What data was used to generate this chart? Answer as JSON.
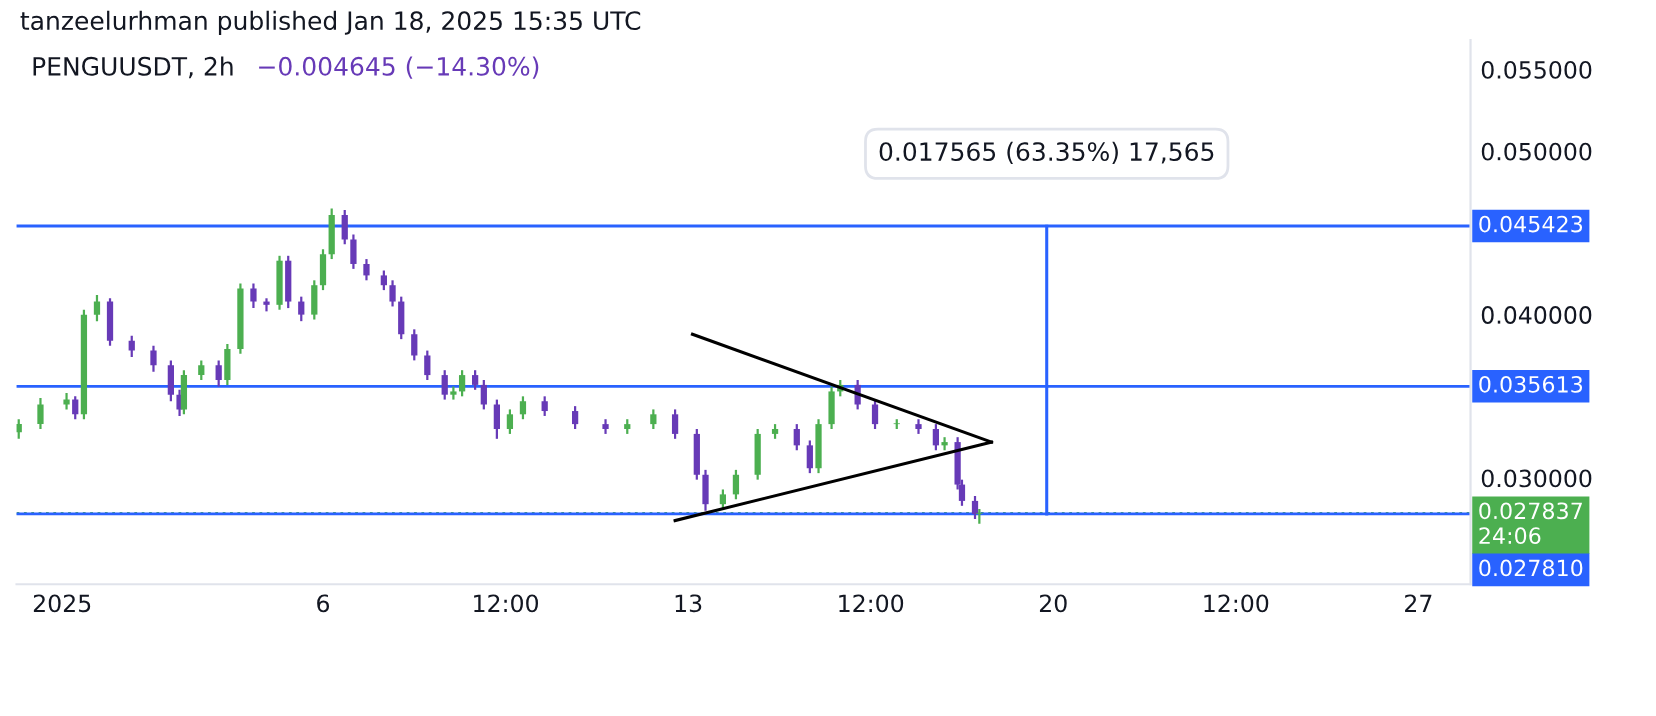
{
  "chart_data": {
    "type": "candlestick",
    "title": "PENGUUSDT, 2h",
    "subtitle": "−0.004645 (−14.30%)",
    "annotations": [
      "tanzeelurhman published Jan 18, 2025 15:35 UTC",
      {
        "text": "0.017565 (63.35%) 17,565",
        "x": "2025-01-19T21:00",
        "y": 0.045423
      }
    ],
    "x": [
      "2024-12-31T04:00",
      "2024-12-31T14:00",
      "2025-01-01T02:00",
      "2025-01-01T06:00",
      "2025-01-01T10:00",
      "2025-01-01T16:00",
      "2025-01-01T22:00",
      "2025-01-02T08:00",
      "2025-01-02T18:00",
      "2025-01-03T02:00",
      "2025-01-03T06:00",
      "2025-01-03T08:00",
      "2025-01-03T16:00",
      "2025-01-04T00:00",
      "2025-01-04T04:00",
      "2025-01-04T10:00",
      "2025-01-04T16:00",
      "2025-01-04T22:00",
      "2025-01-05T04:00",
      "2025-01-05T08:00",
      "2025-01-05T14:00",
      "2025-01-05T20:00",
      "2025-01-06T00:00",
      "2025-01-06T04:00",
      "2025-01-06T10:00",
      "2025-01-06T14:00",
      "2025-01-06T20:00",
      "2025-01-07T04:00",
      "2025-01-07T08:00",
      "2025-01-07T12:00",
      "2025-01-07T18:00",
      "2025-01-08T00:00",
      "2025-01-08T08:00",
      "2025-01-08T12:00",
      "2025-01-08T16:00",
      "2025-01-08T22:00",
      "2025-01-09T02:00",
      "2025-01-09T08:00",
      "2025-01-09T14:00",
      "2025-01-09T20:00",
      "2025-01-10T06:00",
      "2025-01-10T20:00",
      "2025-01-11T10:00",
      "2025-01-11T20:00",
      "2025-01-12T08:00",
      "2025-01-12T18:00",
      "2025-01-13T04:00",
      "2025-01-13T08:00",
      "2025-01-13T16:00",
      "2025-01-13T22:00",
      "2025-01-14T08:00",
      "2025-01-14T16:00",
      "2025-01-15T02:00",
      "2025-01-15T08:00",
      "2025-01-15T12:00",
      "2025-01-15T18:00",
      "2025-01-15T22:00",
      "2025-01-16T06:00",
      "2025-01-16T14:00",
      "2025-01-17T00:00",
      "2025-01-17T10:00",
      "2025-01-17T18:00",
      "2025-01-17T22:00",
      "2025-01-18T04:00",
      "2025-01-18T06:00",
      "2025-01-18T12:00",
      "2025-01-18T14:00"
    ],
    "ohlc": [
      [
        0.0328,
        0.0336,
        0.0324,
        0.0333
      ],
      [
        0.0333,
        0.0349,
        0.033,
        0.0345
      ],
      [
        0.0345,
        0.0352,
        0.0342,
        0.0348
      ],
      [
        0.0348,
        0.035,
        0.0336,
        0.0339
      ],
      [
        0.0339,
        0.0403,
        0.0336,
        0.04
      ],
      [
        0.04,
        0.0412,
        0.0396,
        0.0408
      ],
      [
        0.0408,
        0.041,
        0.0381,
        0.0384
      ],
      [
        0.0384,
        0.0387,
        0.0374,
        0.0378
      ],
      [
        0.0378,
        0.0381,
        0.0365,
        0.0369
      ],
      [
        0.0369,
        0.0372,
        0.0347,
        0.0351
      ],
      [
        0.0351,
        0.0354,
        0.0338,
        0.0342
      ],
      [
        0.0342,
        0.0366,
        0.0339,
        0.0363
      ],
      [
        0.0363,
        0.0372,
        0.036,
        0.0369
      ],
      [
        0.0369,
        0.0372,
        0.0356,
        0.036
      ],
      [
        0.036,
        0.0382,
        0.0357,
        0.0379
      ],
      [
        0.0379,
        0.0419,
        0.0376,
        0.0416
      ],
      [
        0.0416,
        0.0419,
        0.0404,
        0.0408
      ],
      [
        0.0408,
        0.041,
        0.0402,
        0.0406
      ],
      [
        0.0406,
        0.0436,
        0.0403,
        0.0433
      ],
      [
        0.0433,
        0.0436,
        0.0404,
        0.0408
      ],
      [
        0.0408,
        0.0411,
        0.0396,
        0.04
      ],
      [
        0.04,
        0.0421,
        0.0397,
        0.0418
      ],
      [
        0.0418,
        0.044,
        0.0415,
        0.0437
      ],
      [
        0.0437,
        0.0465,
        0.0434,
        0.0461
      ],
      [
        0.0461,
        0.0464,
        0.0443,
        0.0446
      ],
      [
        0.0446,
        0.0449,
        0.0428,
        0.0431
      ],
      [
        0.0431,
        0.0434,
        0.0421,
        0.0424
      ],
      [
        0.0424,
        0.0427,
        0.0415,
        0.0418
      ],
      [
        0.0418,
        0.0421,
        0.0405,
        0.0408
      ],
      [
        0.0408,
        0.0411,
        0.0385,
        0.0388
      ],
      [
        0.0388,
        0.0391,
        0.0372,
        0.0375
      ],
      [
        0.0375,
        0.0378,
        0.036,
        0.0363
      ],
      [
        0.0363,
        0.0366,
        0.0348,
        0.0351
      ],
      [
        0.0351,
        0.0356,
        0.0348,
        0.0353
      ],
      [
        0.0353,
        0.0366,
        0.035,
        0.0363
      ],
      [
        0.0363,
        0.0366,
        0.0354,
        0.0357
      ],
      [
        0.0357,
        0.036,
        0.0342,
        0.0345
      ],
      [
        0.0345,
        0.0348,
        0.0324,
        0.033
      ],
      [
        0.033,
        0.0342,
        0.0327,
        0.0339
      ],
      [
        0.0339,
        0.035,
        0.0336,
        0.0347
      ],
      [
        0.0347,
        0.035,
        0.0338,
        0.0341
      ],
      [
        0.0341,
        0.0344,
        0.033,
        0.0333
      ],
      [
        0.0333,
        0.0336,
        0.0327,
        0.033
      ],
      [
        0.033,
        0.0336,
        0.0327,
        0.0333
      ],
      [
        0.0333,
        0.0342,
        0.033,
        0.0339
      ],
      [
        0.0339,
        0.0342,
        0.0324,
        0.0327
      ],
      [
        0.0327,
        0.033,
        0.0299,
        0.0302
      ],
      [
        0.0302,
        0.0305,
        0.028,
        0.0284
      ],
      [
        0.0284,
        0.0293,
        0.0281,
        0.029
      ],
      [
        0.029,
        0.0305,
        0.0287,
        0.0302
      ],
      [
        0.0302,
        0.033,
        0.0299,
        0.0327
      ],
      [
        0.0327,
        0.0333,
        0.0324,
        0.033
      ],
      [
        0.033,
        0.0333,
        0.0317,
        0.032
      ],
      [
        0.032,
        0.0323,
        0.0303,
        0.0306
      ],
      [
        0.0306,
        0.0336,
        0.0303,
        0.0333
      ],
      [
        0.0333,
        0.0356,
        0.033,
        0.0353
      ],
      [
        0.0353,
        0.036,
        0.035,
        0.0357
      ],
      [
        0.0357,
        0.036,
        0.0342,
        0.0345
      ],
      [
        0.0345,
        0.0348,
        0.033,
        0.0333
      ],
      [
        0.0333,
        0.0336,
        0.033,
        0.0333
      ],
      [
        0.0333,
        0.0336,
        0.0327,
        0.033
      ],
      [
        0.033,
        0.0333,
        0.0317,
        0.032
      ],
      [
        0.032,
        0.0325,
        0.0317,
        0.0322
      ],
      [
        0.0322,
        0.0325,
        0.0293,
        0.0296
      ],
      [
        0.0296,
        0.0299,
        0.0283,
        0.0286
      ],
      [
        0.0286,
        0.0289,
        0.0275,
        0.0278
      ],
      [
        0.0278,
        0.0281,
        0.0272,
        0.0278
      ]
    ],
    "colors": [
      "#4caf50",
      "#4caf50",
      "#4caf50",
      "#673ab7",
      "#4caf50",
      "#4caf50",
      "#673ab7",
      "#673ab7",
      "#673ab7",
      "#673ab7",
      "#673ab7",
      "#4caf50",
      "#4caf50",
      "#673ab7",
      "#4caf50",
      "#4caf50",
      "#673ab7",
      "#673ab7",
      "#4caf50",
      "#673ab7",
      "#673ab7",
      "#4caf50",
      "#4caf50",
      "#4caf50",
      "#673ab7",
      "#673ab7",
      "#673ab7",
      "#673ab7",
      "#673ab7",
      "#673ab7",
      "#673ab7",
      "#673ab7",
      "#673ab7",
      "#4caf50",
      "#4caf50",
      "#673ab7",
      "#673ab7",
      "#673ab7",
      "#4caf50",
      "#4caf50",
      "#673ab7",
      "#673ab7",
      "#673ab7",
      "#4caf50",
      "#4caf50",
      "#673ab7",
      "#673ab7",
      "#673ab7",
      "#4caf50",
      "#4caf50",
      "#4caf50",
      "#4caf50",
      "#673ab7",
      "#673ab7",
      "#4caf50",
      "#4caf50",
      "#4caf50",
      "#673ab7",
      "#673ab7",
      "#4caf50",
      "#673ab7",
      "#673ab7",
      "#4caf50",
      "#673ab7",
      "#673ab7",
      "#673ab7",
      "#4caf50"
    ],
    "series": [
      {
        "type": "line",
        "color": "#000000",
        "x": [
          "2025-01-13T02:00",
          "2025-01-18T19:36"
        ],
        "values": [
          0.0388,
          0.0322
        ]
      },
      {
        "type": "line",
        "color": "#000000",
        "x": [
          "2025-01-12T18:00",
          "2025-01-18T19:36"
        ],
        "values": [
          0.0274,
          0.0322
        ]
      },
      {
        "type": "line",
        "color": "#2962ff",
        "x": [
          "2025-01-19T21:00",
          "2025-01-19T21:00"
        ],
        "values": [
          0.0278,
          0.0454
        ]
      }
    ],
    "ref_lines": [
      {
        "axis": "y",
        "value": 0.045423,
        "label": "0.045423",
        "color": "#2962ff",
        "line_style": "solid"
      },
      {
        "axis": "y",
        "value": 0.035613,
        "label": "0.035613",
        "color": "#2962ff",
        "line_style": "solid"
      },
      {
        "axis": "y",
        "value": 0.027837,
        "label": "0.027837\n24:06",
        "color": "#4caf50",
        "line_style": "dotted"
      },
      {
        "axis": "y",
        "value": 0.02781,
        "label": "0.027810",
        "color": "#2962ff",
        "line_style": "solid"
      }
    ],
    "xlim": [
      "2024-12-31T03:00",
      "2025-01-28T00:00"
    ],
    "xticks": [
      {
        "value": "2025-01-01",
        "label": "2025"
      },
      {
        "value": "2025-01-06",
        "label": "6"
      },
      {
        "value": "2025-01-09T12:00",
        "label": "12:00"
      },
      {
        "value": "2025-01-13",
        "label": "13"
      },
      {
        "value": "2025-01-16T12:00",
        "label": "12:00"
      },
      {
        "value": "2025-01-20",
        "label": "20"
      },
      {
        "value": "2025-01-23T12:00",
        "label": "12:00"
      },
      {
        "value": "2025-01-27",
        "label": "27"
      }
    ],
    "ylim": [
      0.0235,
      0.0568
    ],
    "yticks": [
      {
        "value": 0.03,
        "label": "0.030000"
      },
      {
        "value": 0.04,
        "label": "0.040000"
      },
      {
        "value": 0.05,
        "label": "0.050000"
      },
      {
        "value": 0.055,
        "label": "0.055000"
      }
    ],
    "grid": false,
    "legend": false
  }
}
